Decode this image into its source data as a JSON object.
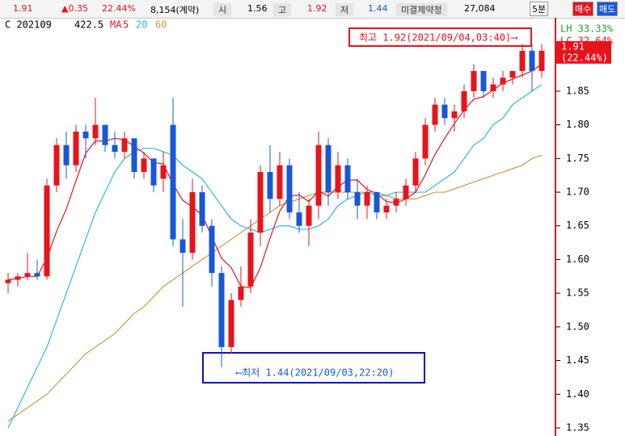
{
  "quote_bar": {
    "price": "1.91",
    "change": "▲0.35",
    "rate": "22.44%",
    "volume": "8,154(계약)",
    "open_label": "시",
    "open": "1.56",
    "high_label": "고",
    "high": "1.92",
    "low_label": "저",
    "low": "1.44",
    "oi_label": "미결제약정",
    "oi": "27,084",
    "interval": "5분",
    "buy": "매수",
    "sell": "매도"
  },
  "chart_data": {
    "type": "candlestick",
    "symbol": "C 202109",
    "symbol_value": "422.5",
    "ma_label": "MA",
    "lh": "LH  33.33%",
    "lc": "LC  32.64%",
    "up_color": "#e8141c",
    "down_color": "#1858d8",
    "open": [
      1.565,
      1.57,
      1.575,
      1.58,
      1.575,
      1.71,
      1.77,
      1.74,
      1.79,
      1.78,
      1.8,
      1.77,
      1.76,
      1.78,
      1.73,
      1.75,
      1.72,
      1.8,
      1.63,
      1.61,
      1.7,
      1.65,
      1.58,
      1.47,
      1.54,
      1.56,
      1.64,
      1.73,
      1.69,
      1.74,
      1.67,
      1.65,
      1.68,
      1.77,
      1.7,
      1.74,
      1.7,
      1.68,
      1.7,
      1.67,
      1.68,
      1.69,
      1.71,
      1.75,
      1.8,
      1.83,
      1.81,
      1.82,
      1.85,
      1.88,
      1.85,
      1.86,
      1.87,
      1.88,
      1.91,
      1.88
    ],
    "high": [
      1.58,
      1.58,
      1.61,
      1.6,
      1.72,
      1.78,
      1.79,
      1.8,
      1.8,
      1.84,
      1.8,
      1.79,
      1.79,
      1.78,
      1.76,
      1.75,
      1.76,
      1.84,
      1.66,
      1.72,
      1.71,
      1.66,
      1.59,
      1.55,
      1.59,
      1.66,
      1.74,
      1.77,
      1.76,
      1.75,
      1.7,
      1.69,
      1.79,
      1.78,
      1.76,
      1.75,
      1.72,
      1.71,
      1.7,
      1.69,
      1.7,
      1.72,
      1.76,
      1.81,
      1.84,
      1.84,
      1.83,
      1.86,
      1.89,
      1.88,
      1.87,
      1.88,
      1.88,
      1.92,
      1.92,
      1.92
    ],
    "low": [
      1.55,
      1.56,
      1.57,
      1.57,
      1.57,
      1.7,
      1.72,
      1.73,
      1.75,
      1.77,
      1.76,
      1.75,
      1.75,
      1.72,
      1.72,
      1.7,
      1.7,
      1.62,
      1.53,
      1.6,
      1.64,
      1.56,
      1.44,
      1.46,
      1.53,
      1.55,
      1.62,
      1.67,
      1.68,
      1.66,
      1.64,
      1.62,
      1.66,
      1.68,
      1.69,
      1.69,
      1.66,
      1.66,
      1.66,
      1.66,
      1.67,
      1.68,
      1.7,
      1.74,
      1.79,
      1.8,
      1.79,
      1.81,
      1.84,
      1.84,
      1.84,
      1.85,
      1.86,
      1.87,
      1.85,
      1.87
    ],
    "close": [
      1.57,
      1.575,
      1.58,
      1.575,
      1.71,
      1.77,
      1.74,
      1.79,
      1.78,
      1.8,
      1.77,
      1.76,
      1.78,
      1.73,
      1.75,
      1.71,
      1.74,
      1.63,
      1.61,
      1.7,
      1.65,
      1.58,
      1.47,
      1.54,
      1.56,
      1.64,
      1.73,
      1.69,
      1.74,
      1.67,
      1.65,
      1.68,
      1.77,
      1.7,
      1.74,
      1.7,
      1.68,
      1.7,
      1.67,
      1.68,
      1.69,
      1.71,
      1.75,
      1.8,
      1.83,
      1.81,
      1.82,
      1.85,
      1.88,
      1.85,
      1.86,
      1.87,
      1.88,
      1.91,
      1.88,
      1.91
    ],
    "series": [
      {
        "name": "5",
        "color": "#e8141c",
        "values": [
          1.57,
          1.572,
          1.575,
          1.575,
          1.602,
          1.642,
          1.675,
          1.717,
          1.758,
          1.776,
          1.776,
          1.78,
          1.778,
          1.768,
          1.758,
          1.744,
          1.742,
          1.712,
          1.688,
          1.678,
          1.666,
          1.634,
          1.602,
          1.588,
          1.56,
          1.558,
          1.588,
          1.632,
          1.672,
          1.694,
          1.696,
          1.686,
          1.702,
          1.694,
          1.708,
          1.718,
          1.718,
          1.704,
          1.698,
          1.686,
          1.684,
          1.69,
          1.7,
          1.726,
          1.756,
          1.78,
          1.802,
          1.822,
          1.838,
          1.842,
          1.852,
          1.862,
          1.868,
          1.874,
          1.88,
          1.89
        ]
      },
      {
        "name": "20",
        "color": "#30b8e0",
        "values": [
          1.35,
          1.38,
          1.41,
          1.44,
          1.47,
          1.51,
          1.55,
          1.59,
          1.63,
          1.67,
          1.7,
          1.73,
          1.75,
          1.76,
          1.765,
          1.765,
          1.76,
          1.755,
          1.74,
          1.73,
          1.72,
          1.7,
          1.68,
          1.66,
          1.65,
          1.645,
          1.64,
          1.645,
          1.65,
          1.65,
          1.645,
          1.645,
          1.65,
          1.66,
          1.68,
          1.69,
          1.695,
          1.7,
          1.695,
          1.695,
          1.7,
          1.7,
          1.7,
          1.7,
          1.71,
          1.72,
          1.73,
          1.75,
          1.77,
          1.78,
          1.8,
          1.81,
          1.83,
          1.84,
          1.85,
          1.86
        ]
      },
      {
        "name": "60",
        "color": "#c89a48",
        "values": [
          1.36,
          1.37,
          1.38,
          1.39,
          1.4,
          1.415,
          1.43,
          1.445,
          1.46,
          1.47,
          1.48,
          1.49,
          1.505,
          1.52,
          1.53,
          1.545,
          1.56,
          1.57,
          1.58,
          1.59,
          1.6,
          1.61,
          1.62,
          1.63,
          1.64,
          1.65,
          1.66,
          1.67,
          1.68,
          1.685,
          1.69,
          1.695,
          1.7,
          1.7,
          1.7,
          1.7,
          1.7,
          1.7,
          1.7,
          1.695,
          1.69,
          1.69,
          1.69,
          1.695,
          1.7,
          1.7,
          1.705,
          1.71,
          1.715,
          1.72,
          1.725,
          1.73,
          1.735,
          1.74,
          1.75,
          1.755
        ]
      }
    ],
    "ylim": [
      1.338,
      1.959
    ],
    "yticks": [
      1.35,
      {
        "value": 1.4,
        "label": "1.40"
      },
      1.45,
      {
        "value": 1.5,
        "label": "1.50"
      },
      1.55,
      {
        "value": 1.6,
        "label": "1.60"
      },
      1.65,
      {
        "value": 1.7,
        "label": "1.70"
      },
      1.75,
      {
        "value": 1.8,
        "label": "1.80"
      },
      1.85
    ],
    "last_price": {
      "value": 1.91,
      "label": "1.91",
      "rate": "(22.44%)"
    },
    "annotations": {
      "high": "최고 1.92(2021/09/04,03:40)⟶",
      "low": "⟵최저 1.44(2021/09/03,22:20)"
    }
  }
}
